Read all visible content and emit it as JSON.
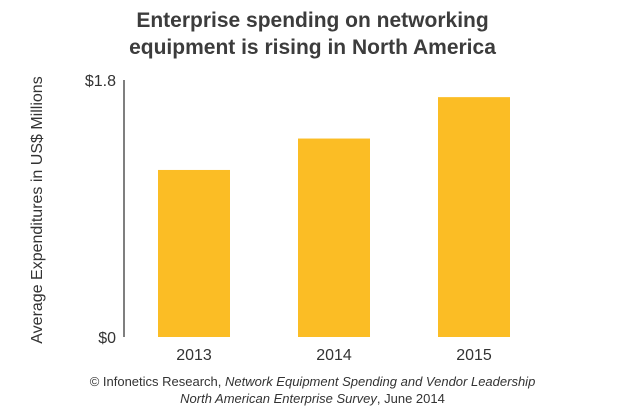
{
  "chart_data": {
    "type": "bar",
    "title_lines": [
      "Enterprise spending on networking",
      "equipment is rising in North America"
    ],
    "categories": [
      "2013",
      "2014",
      "2015"
    ],
    "values": [
      1.17,
      1.39,
      1.68
    ],
    "ylabel": "Average Expenditures in US$ Millions",
    "xlabel": "",
    "ylim": [
      0,
      1.8
    ],
    "y_tick_labels": [
      "$0",
      "$1.8"
    ],
    "bar_color": "#fbbd25",
    "grid": false,
    "legend": "none"
  },
  "footer": {
    "line1_prefix": "© Infonetics Research, ",
    "line1_italic": "Network Equipment Spending and Vendor Leadership",
    "line2_italic": "North American Enterprise Survey",
    "line2_suffix": ", June 2014"
  }
}
